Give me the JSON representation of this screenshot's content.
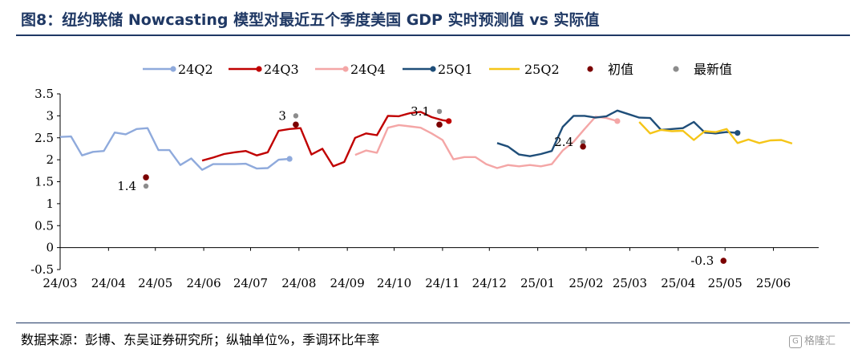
{
  "header": {
    "title": "图8：纽约联储 Nowcasting 模型对最近五个季度美国 GDP 实时预测值 vs 实际值"
  },
  "footer": {
    "source": "数据来源：彭博、东吴证券研究所；纵轴单位%，季调环比年率",
    "watermark": "格隆汇",
    "watermark_icon": "G"
  },
  "chart_data": {
    "type": "line",
    "title": "纽约联储 Nowcasting 模型对最近五个季度美国 GDP 实时预测值 vs 实际值",
    "ylim": [
      -0.5,
      3.5
    ],
    "ystep": 0.5,
    "y_ticks": [
      "-0.5",
      "0",
      "0.5",
      "1",
      "1.5",
      "2",
      "2.5",
      "3",
      "3.5"
    ],
    "x_range": [
      "2024-03-01",
      "2025-06-30"
    ],
    "x_ticks": [
      {
        "label": "24/03",
        "date": "2024-03-01"
      },
      {
        "label": "24/04",
        "date": "2024-04-01"
      },
      {
        "label": "24/05",
        "date": "2024-05-01"
      },
      {
        "label": "24/06",
        "date": "2024-06-01"
      },
      {
        "label": "24/07",
        "date": "2024-07-01"
      },
      {
        "label": "24/08",
        "date": "2024-08-01"
      },
      {
        "label": "24/09",
        "date": "2024-09-01"
      },
      {
        "label": "24/10",
        "date": "2024-10-01"
      },
      {
        "label": "24/11",
        "date": "2024-11-01"
      },
      {
        "label": "24/12",
        "date": "2024-12-01"
      },
      {
        "label": "25/01",
        "date": "2025-01-01"
      },
      {
        "label": "25/02",
        "date": "2025-02-01"
      },
      {
        "label": "25/03",
        "date": "2025-03-01"
      },
      {
        "label": "25/04",
        "date": "2025-04-01"
      },
      {
        "label": "25/05",
        "date": "2025-05-01"
      },
      {
        "label": "25/06",
        "date": "2025-06-01"
      }
    ],
    "legend_position": "top",
    "grid": false,
    "series": [
      {
        "name": "24Q2",
        "color": "#8faadc",
        "marker": "end",
        "points": [
          [
            "2024-03-01",
            2.52
          ],
          [
            "2024-03-08",
            2.53
          ],
          [
            "2024-03-15",
            2.1
          ],
          [
            "2024-03-22",
            2.18
          ],
          [
            "2024-03-29",
            2.2
          ],
          [
            "2024-04-05",
            2.62
          ],
          [
            "2024-04-12",
            2.58
          ],
          [
            "2024-04-19",
            2.7
          ],
          [
            "2024-04-26",
            2.72
          ],
          [
            "2024-05-03",
            2.22
          ],
          [
            "2024-05-10",
            2.22
          ],
          [
            "2024-05-17",
            1.88
          ],
          [
            "2024-05-24",
            2.03
          ],
          [
            "2024-05-31",
            1.77
          ],
          [
            "2024-06-07",
            1.9
          ],
          [
            "2024-06-14",
            1.9
          ],
          [
            "2024-06-21",
            1.9
          ],
          [
            "2024-06-28",
            1.91
          ],
          [
            "2024-07-05",
            1.8
          ],
          [
            "2024-07-12",
            1.81
          ],
          [
            "2024-07-19",
            2.0
          ],
          [
            "2024-07-26",
            2.02
          ]
        ]
      },
      {
        "name": "24Q3",
        "color": "#c00000",
        "marker": "end",
        "points": [
          [
            "2024-05-31",
            1.98
          ],
          [
            "2024-06-07",
            2.05
          ],
          [
            "2024-06-14",
            2.13
          ],
          [
            "2024-06-21",
            2.17
          ],
          [
            "2024-06-28",
            2.2
          ],
          [
            "2024-07-05",
            2.1
          ],
          [
            "2024-07-12",
            2.17
          ],
          [
            "2024-07-19",
            2.66
          ],
          [
            "2024-07-26",
            2.7
          ],
          [
            "2024-08-02",
            2.72
          ],
          [
            "2024-08-09",
            2.12
          ],
          [
            "2024-08-16",
            2.25
          ],
          [
            "2024-08-23",
            1.85
          ],
          [
            "2024-08-30",
            1.95
          ],
          [
            "2024-09-06",
            2.5
          ],
          [
            "2024-09-13",
            2.6
          ],
          [
            "2024-09-20",
            2.56
          ],
          [
            "2024-09-27",
            3.0
          ],
          [
            "2024-10-04",
            2.99
          ],
          [
            "2024-10-11",
            3.06
          ],
          [
            "2024-10-18",
            3.09
          ],
          [
            "2024-10-25",
            2.97
          ],
          [
            "2024-11-01",
            2.9
          ],
          [
            "2024-11-05",
            2.88
          ]
        ]
      },
      {
        "name": "24Q4",
        "color": "#f4a6a6",
        "marker": "end",
        "points": [
          [
            "2024-09-06",
            2.11
          ],
          [
            "2024-09-13",
            2.21
          ],
          [
            "2024-09-20",
            2.16
          ],
          [
            "2024-09-27",
            2.73
          ],
          [
            "2024-10-04",
            2.79
          ],
          [
            "2024-10-11",
            2.76
          ],
          [
            "2024-10-18",
            2.73
          ],
          [
            "2024-10-25",
            2.6
          ],
          [
            "2024-11-01",
            2.45
          ],
          [
            "2024-11-08",
            2.01
          ],
          [
            "2024-11-15",
            2.06
          ],
          [
            "2024-11-22",
            2.06
          ],
          [
            "2024-11-29",
            1.9
          ],
          [
            "2024-12-06",
            1.81
          ],
          [
            "2024-12-13",
            1.88
          ],
          [
            "2024-12-20",
            1.85
          ],
          [
            "2024-12-27",
            1.88
          ],
          [
            "2025-01-03",
            1.85
          ],
          [
            "2025-01-10",
            1.9
          ],
          [
            "2025-01-17",
            2.21
          ],
          [
            "2025-01-24",
            2.41
          ],
          [
            "2025-01-31",
            2.7
          ],
          [
            "2025-02-07",
            2.98
          ],
          [
            "2025-02-14",
            2.95
          ],
          [
            "2025-02-21",
            2.88
          ]
        ]
      },
      {
        "name": "25Q1",
        "color": "#1f4e79",
        "marker": "end",
        "points": [
          [
            "2024-12-06",
            2.38
          ],
          [
            "2024-12-13",
            2.3
          ],
          [
            "2024-12-20",
            2.12
          ],
          [
            "2024-12-27",
            2.08
          ],
          [
            "2025-01-03",
            2.13
          ],
          [
            "2025-01-10",
            2.2
          ],
          [
            "2025-01-17",
            2.75
          ],
          [
            "2025-01-24",
            3.0
          ],
          [
            "2025-01-31",
            3.0
          ],
          [
            "2025-02-07",
            2.96
          ],
          [
            "2025-02-14",
            2.99
          ],
          [
            "2025-02-21",
            3.12
          ],
          [
            "2025-02-28",
            3.04
          ],
          [
            "2025-03-07",
            2.96
          ],
          [
            "2025-03-14",
            2.95
          ],
          [
            "2025-03-21",
            2.68
          ],
          [
            "2025-03-28",
            2.7
          ],
          [
            "2025-04-04",
            2.72
          ],
          [
            "2025-04-11",
            2.86
          ],
          [
            "2025-04-18",
            2.62
          ],
          [
            "2025-04-25",
            2.6
          ],
          [
            "2025-05-02",
            2.63
          ],
          [
            "2025-05-09",
            2.61
          ]
        ]
      },
      {
        "name": "25Q2",
        "color": "#f5c518",
        "marker": "none",
        "points": [
          [
            "2025-03-07",
            2.86
          ],
          [
            "2025-03-14",
            2.6
          ],
          [
            "2025-03-21",
            2.68
          ],
          [
            "2025-03-28",
            2.65
          ],
          [
            "2025-04-04",
            2.66
          ],
          [
            "2025-04-11",
            2.45
          ],
          [
            "2025-04-18",
            2.65
          ],
          [
            "2025-04-25",
            2.63
          ],
          [
            "2025-05-02",
            2.7
          ],
          [
            "2025-05-09",
            2.38
          ],
          [
            "2025-05-16",
            2.46
          ],
          [
            "2025-05-23",
            2.38
          ],
          [
            "2025-05-30",
            2.44
          ],
          [
            "2025-06-06",
            2.45
          ],
          [
            "2025-06-13",
            2.37
          ]
        ]
      }
    ],
    "scatter_series": [
      {
        "name": "初值",
        "color": "#7b0000",
        "points": [
          [
            "2024-04-25",
            1.6
          ],
          [
            "2024-07-30",
            2.8
          ],
          [
            "2024-10-30",
            2.8
          ],
          [
            "2025-01-30",
            2.3
          ],
          [
            "2025-04-30",
            -0.3
          ]
        ]
      },
      {
        "name": "最新值",
        "color": "#8c8c8c",
        "points": [
          [
            "2024-04-25",
            1.4
          ],
          [
            "2024-07-30",
            3.0
          ],
          [
            "2024-10-30",
            3.1
          ],
          [
            "2025-01-30",
            2.4
          ],
          [
            "2025-04-30",
            -0.3
          ]
        ]
      }
    ],
    "annotations": [
      {
        "text": "1.4",
        "date": "2024-04-25",
        "value": 1.4,
        "anchor": "left"
      },
      {
        "text": "3",
        "date": "2024-07-30",
        "value": 3.0,
        "anchor": "left"
      },
      {
        "text": "3.1",
        "date": "2024-10-30",
        "value": 3.1,
        "anchor": "left"
      },
      {
        "text": "2.4",
        "date": "2025-01-30",
        "value": 2.4,
        "anchor": "left"
      },
      {
        "text": "-0.3",
        "date": "2025-04-30",
        "value": -0.3,
        "anchor": "left"
      }
    ]
  }
}
